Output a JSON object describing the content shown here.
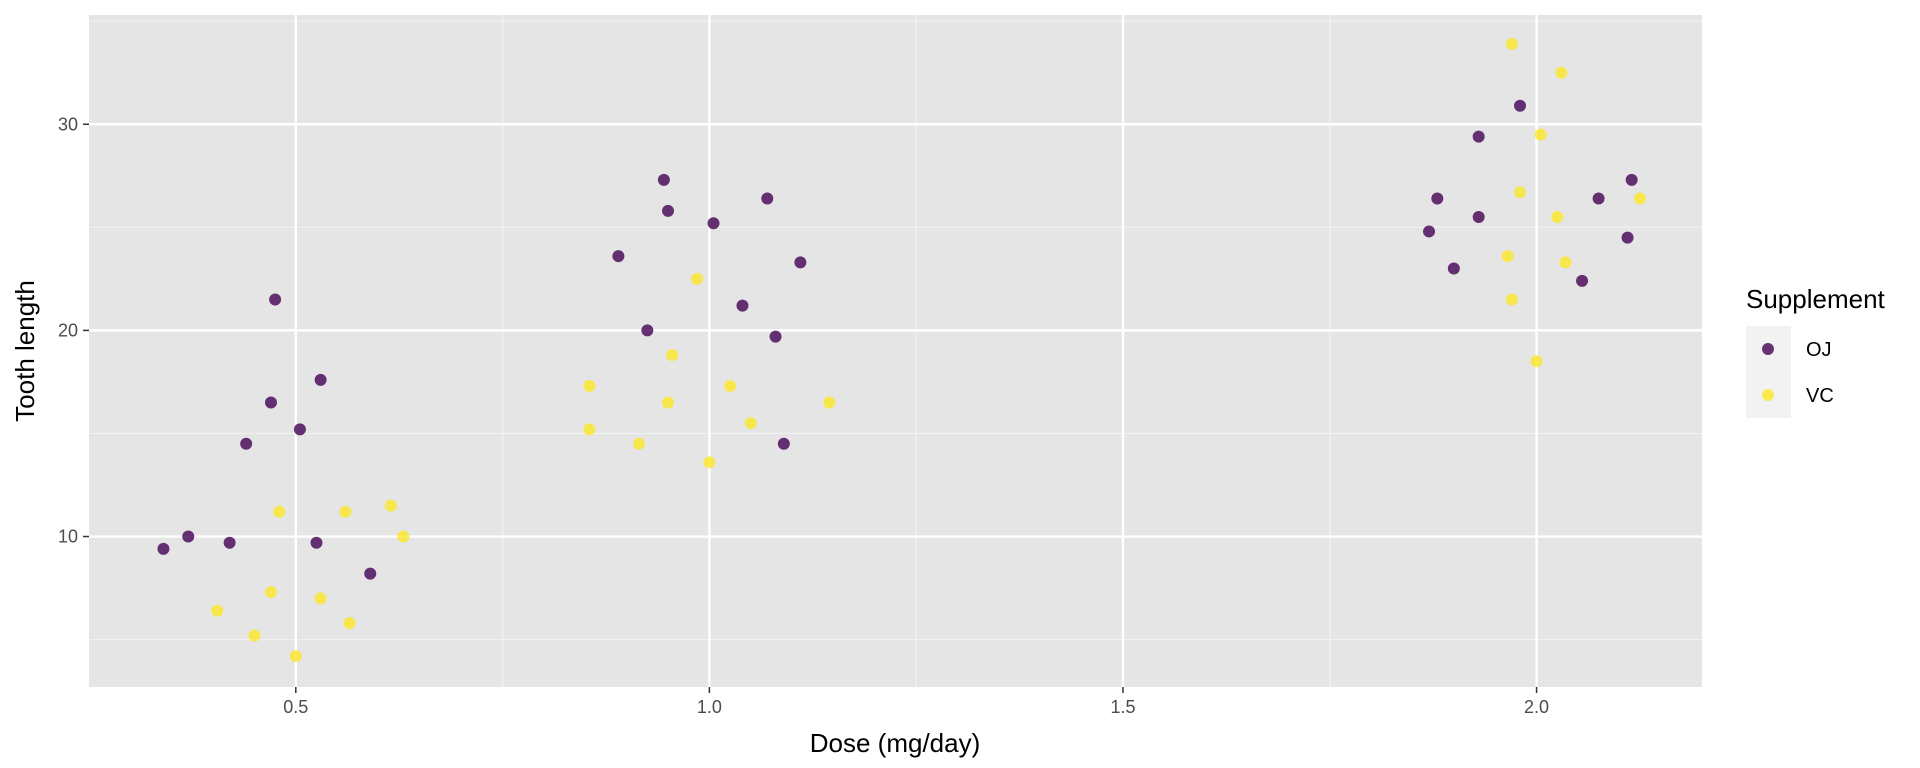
{
  "chart_data": {
    "type": "scatter",
    "title": "",
    "xlabel": "Dose (mg/day)",
    "ylabel": "Tooth length",
    "xlim": [
      0.25,
      2.2
    ],
    "ylim": [
      2.7,
      35.3
    ],
    "x_ticks": [
      0.5,
      1.0,
      1.5,
      2.0
    ],
    "x_tick_labels": [
      "0.5",
      "1.0",
      "1.5",
      "2.0"
    ],
    "y_ticks": [
      10,
      20,
      30
    ],
    "y_tick_labels": [
      "10",
      "20",
      "30"
    ],
    "grid": true,
    "legend": {
      "title": "Supplement",
      "placement": "right",
      "entries": [
        "OJ",
        "VC"
      ]
    },
    "series": [
      {
        "name": "OJ",
        "color": "#440154",
        "points": [
          {
            "x": 0.34,
            "y": 9.4
          },
          {
            "x": 0.37,
            "y": 10.0
          },
          {
            "x": 0.42,
            "y": 9.7
          },
          {
            "x": 0.44,
            "y": 14.5
          },
          {
            "x": 0.47,
            "y": 16.5
          },
          {
            "x": 0.475,
            "y": 21.5
          },
          {
            "x": 0.505,
            "y": 15.2
          },
          {
            "x": 0.525,
            "y": 9.7
          },
          {
            "x": 0.53,
            "y": 17.6
          },
          {
            "x": 0.59,
            "y": 8.2
          },
          {
            "x": 0.89,
            "y": 23.6
          },
          {
            "x": 0.925,
            "y": 20.0
          },
          {
            "x": 0.945,
            "y": 27.3
          },
          {
            "x": 0.95,
            "y": 25.8
          },
          {
            "x": 1.005,
            "y": 25.2
          },
          {
            "x": 1.04,
            "y": 21.2
          },
          {
            "x": 1.07,
            "y": 26.4
          },
          {
            "x": 1.08,
            "y": 19.7
          },
          {
            "x": 1.09,
            "y": 14.5
          },
          {
            "x": 1.11,
            "y": 23.3
          },
          {
            "x": 1.87,
            "y": 24.8
          },
          {
            "x": 1.88,
            "y": 26.4
          },
          {
            "x": 1.9,
            "y": 23.0
          },
          {
            "x": 1.93,
            "y": 29.4
          },
          {
            "x": 1.93,
            "y": 25.5
          },
          {
            "x": 1.98,
            "y": 30.9
          },
          {
            "x": 2.055,
            "y": 22.4
          },
          {
            "x": 2.075,
            "y": 26.4
          },
          {
            "x": 2.11,
            "y": 24.5
          },
          {
            "x": 2.115,
            "y": 27.3
          }
        ]
      },
      {
        "name": "VC",
        "color": "#FDE725",
        "points": [
          {
            "x": 0.405,
            "y": 6.4
          },
          {
            "x": 0.45,
            "y": 5.2
          },
          {
            "x": 0.47,
            "y": 7.3
          },
          {
            "x": 0.48,
            "y": 11.2
          },
          {
            "x": 0.5,
            "y": 4.2
          },
          {
            "x": 0.53,
            "y": 7.0
          },
          {
            "x": 0.56,
            "y": 11.2
          },
          {
            "x": 0.565,
            "y": 5.8
          },
          {
            "x": 0.615,
            "y": 11.5
          },
          {
            "x": 0.63,
            "y": 10.0
          },
          {
            "x": 0.855,
            "y": 17.3
          },
          {
            "x": 0.855,
            "y": 15.2
          },
          {
            "x": 0.915,
            "y": 14.5
          },
          {
            "x": 0.95,
            "y": 16.5
          },
          {
            "x": 0.955,
            "y": 18.8
          },
          {
            "x": 0.985,
            "y": 22.5
          },
          {
            "x": 1.0,
            "y": 13.6
          },
          {
            "x": 1.025,
            "y": 17.3
          },
          {
            "x": 1.05,
            "y": 15.5
          },
          {
            "x": 1.145,
            "y": 16.5
          },
          {
            "x": 1.965,
            "y": 23.6
          },
          {
            "x": 1.97,
            "y": 21.5
          },
          {
            "x": 1.97,
            "y": 33.9
          },
          {
            "x": 1.98,
            "y": 26.7
          },
          {
            "x": 2.0,
            "y": 18.5
          },
          {
            "x": 2.005,
            "y": 29.5
          },
          {
            "x": 2.025,
            "y": 25.5
          },
          {
            "x": 2.03,
            "y": 32.5
          },
          {
            "x": 2.035,
            "y": 23.3
          },
          {
            "x": 2.125,
            "y": 26.4
          }
        ]
      }
    ]
  },
  "colors": {
    "panel_background": "#E5E5E5",
    "grid_major": "#FFFFFF",
    "grid_minor": "#F2F2F2",
    "legend_key_background": "#F2F2F2",
    "tick_text": "#4D4D4D"
  }
}
